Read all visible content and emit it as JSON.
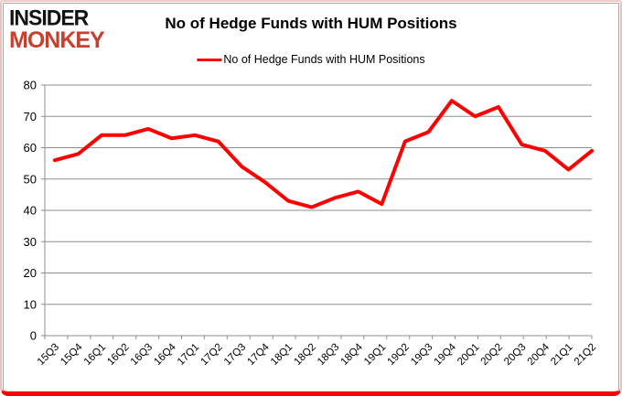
{
  "logo": {
    "line1": "INSIDER",
    "line2": "MONKEY",
    "line1_color": "#121212",
    "line2_color": "#c5402e"
  },
  "header": {
    "title": "No of Hedge Funds with HUM Positions"
  },
  "legend": {
    "label": "No of Hedge Funds with HUM Positions",
    "line_color": "#fe0000"
  },
  "chart_data": {
    "type": "line",
    "title": "No of Hedge Funds with HUM Positions",
    "categories": [
      "15Q3",
      "15Q4",
      "16Q1",
      "16Q2",
      "16Q3",
      "16Q4",
      "17Q1",
      "17Q2",
      "17Q3",
      "17Q4",
      "18Q1",
      "18Q2",
      "18Q3",
      "18Q4",
      "19Q1",
      "19Q2",
      "19Q3",
      "19Q4",
      "20Q1",
      "20Q2",
      "20Q3",
      "20Q4",
      "21Q1",
      "21Q2"
    ],
    "series": [
      {
        "name": "No of Hedge Funds with HUM Positions",
        "color": "#fe0000",
        "values": [
          56,
          58,
          64,
          64,
          66,
          63,
          64,
          62,
          54,
          49,
          43,
          41,
          44,
          46,
          42,
          62,
          65,
          75,
          70,
          73,
          61,
          59,
          53,
          59
        ]
      }
    ],
    "xlabel": "",
    "ylabel": "",
    "ylim": [
      0,
      80
    ],
    "ytick_step": 10,
    "grid": true,
    "gridline_color": "#8f8f8f",
    "legend_position": "top"
  }
}
